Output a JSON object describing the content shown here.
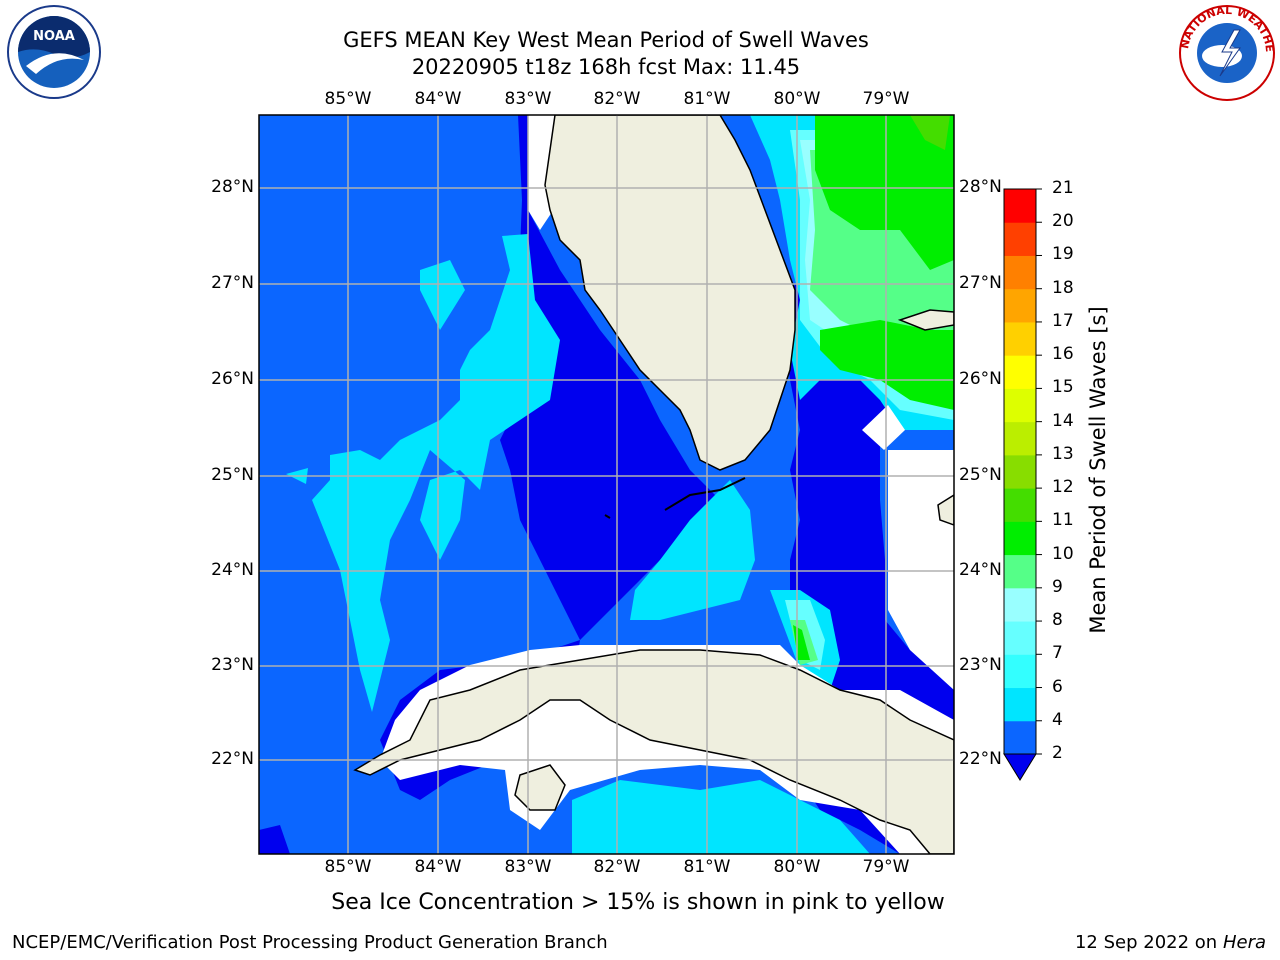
{
  "title": {
    "line1": "GEFS MEAN Key West Mean Period of Swell Waves",
    "line2": "20220905 t18z 168h fcst   Max: 11.45"
  },
  "map": {
    "lon_labels": [
      "85°W",
      "84°W",
      "83°W",
      "82°W",
      "81°W",
      "80°W",
      "79°W"
    ],
    "lat_labels": [
      "28°N",
      "27°N",
      "26°N",
      "25°N",
      "24°N",
      "23°N",
      "22°N"
    ]
  },
  "colorbar": {
    "label": "Mean Period of Swell Waves [s]",
    "ticks": [
      "2",
      "4",
      "6",
      "7",
      "8",
      "9",
      "10",
      "11",
      "12",
      "13",
      "14",
      "15",
      "16",
      "17",
      "18",
      "19",
      "20",
      "21"
    ],
    "colors": [
      "#0b66ff",
      "#00e5ff",
      "#33ffff",
      "#66ffff",
      "#99ffff",
      "#55ff88",
      "#00ee00",
      "#44dd00",
      "#88dd00",
      "#bbee00",
      "#ddff00",
      "#ffff00",
      "#ffd000",
      "#ffa500",
      "#ff8000",
      "#ff4000",
      "#ff0000"
    ],
    "extend_color": "#0000ee"
  },
  "note": "Sea Ice Concentration > 15% is shown in pink to yellow",
  "footer": {
    "left": "NCEP/EMC/Verification Post Processing Product Generation Branch",
    "date": "12 Sep 2022 on",
    "machine": "Hera"
  },
  "logos": {
    "noaa": "NOAA",
    "nws": "NATIONAL WEATHER SERVICE"
  }
}
